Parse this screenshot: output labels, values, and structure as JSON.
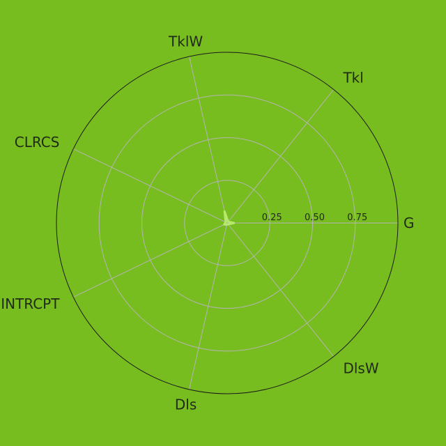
{
  "chart_data": {
    "type": "radar",
    "axes": [
      "G",
      "Tkl",
      "TklW",
      "CLRCS",
      "INTRCPT",
      "Dls",
      "DlsW"
    ],
    "radial_ticks": [
      {
        "value": 0.25,
        "label": "0.25"
      },
      {
        "value": 0.5,
        "label": "0.50"
      },
      {
        "value": 0.75,
        "label": "0.75"
      }
    ],
    "rlim": [
      0,
      1
    ],
    "grid": true,
    "series": [
      {
        "values": [
          0.04,
          0.01,
          0.07,
          0.01,
          0.02,
          0.01,
          0.01
        ],
        "color": "#b6e86e"
      }
    ]
  },
  "colors": {
    "background": "#78bd1f",
    "grid": "#b4b4b4",
    "outer_ring": "#1b1b1b",
    "text": "#1f2a14"
  }
}
